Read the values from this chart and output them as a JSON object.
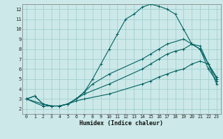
{
  "xlabel": "Humidex (Indice chaleur)",
  "xlim": [
    -0.5,
    23.5
  ],
  "ylim": [
    1.5,
    12.5
  ],
  "xticks": [
    0,
    1,
    2,
    3,
    4,
    5,
    6,
    7,
    8,
    9,
    10,
    11,
    12,
    13,
    14,
    15,
    16,
    17,
    18,
    19,
    20,
    21,
    22,
    23
  ],
  "yticks": [
    2,
    3,
    4,
    5,
    6,
    7,
    8,
    9,
    10,
    11,
    12
  ],
  "bg_color": "#cce8e8",
  "line_color": "#006060",
  "grid_color": "#99cccc",
  "line1_x": [
    0,
    1,
    2,
    3,
    4,
    5,
    6,
    7,
    8,
    9,
    10,
    11,
    12,
    13,
    14,
    15,
    16,
    17,
    18,
    19,
    20,
    21,
    22,
    23
  ],
  "line1_y": [
    3.0,
    3.3,
    2.5,
    2.3,
    2.3,
    2.5,
    3.0,
    3.7,
    5.0,
    6.5,
    8.0,
    9.5,
    11.0,
    11.5,
    12.2,
    12.5,
    12.3,
    12.0,
    11.5,
    10.0,
    8.5,
    8.0,
    6.5,
    5.0
  ],
  "line2_x": [
    0,
    1,
    2,
    3,
    4,
    5,
    6,
    7,
    8,
    10,
    14,
    15,
    16,
    17,
    19,
    20,
    21,
    22,
    23
  ],
  "line2_y": [
    3.0,
    3.3,
    2.5,
    2.3,
    2.3,
    2.5,
    3.0,
    3.7,
    4.5,
    5.5,
    7.0,
    7.5,
    8.0,
    8.5,
    9.0,
    8.5,
    8.3,
    6.5,
    5.2
  ],
  "line3_x": [
    0,
    2,
    3,
    4,
    5,
    6,
    7,
    10,
    14,
    15,
    16,
    17,
    18,
    19,
    20,
    21,
    22,
    23
  ],
  "line3_y": [
    3.0,
    2.5,
    2.3,
    2.3,
    2.5,
    3.0,
    3.5,
    4.5,
    6.0,
    6.5,
    7.0,
    7.5,
    7.8,
    8.0,
    8.5,
    8.0,
    6.0,
    4.8
  ],
  "line4_x": [
    0,
    2,
    3,
    4,
    5,
    6,
    7,
    10,
    14,
    15,
    16,
    17,
    18,
    19,
    20,
    21,
    22,
    23
  ],
  "line4_y": [
    3.0,
    2.3,
    2.3,
    2.3,
    2.5,
    2.8,
    3.0,
    3.5,
    4.5,
    4.8,
    5.2,
    5.5,
    5.8,
    6.0,
    6.5,
    6.8,
    6.5,
    4.5
  ]
}
